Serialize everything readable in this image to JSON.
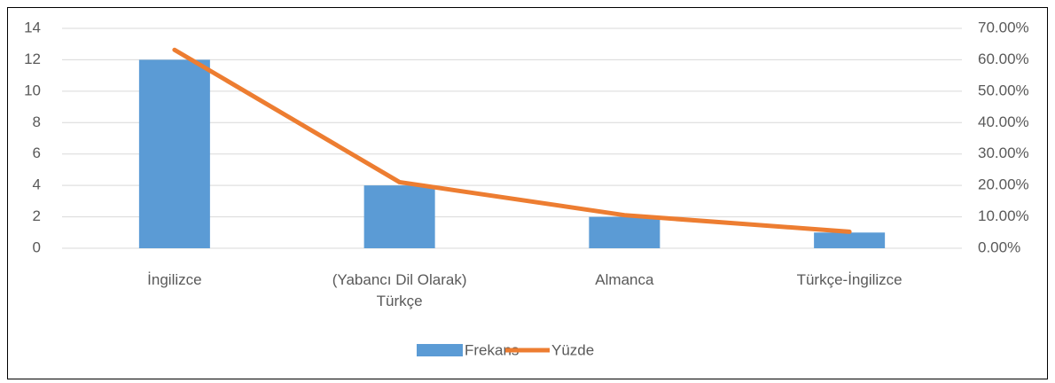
{
  "chart_data": {
    "type": "bar_line",
    "categories": [
      "İngilizce",
      "(Yabancı Dil Olarak) Türkçe",
      "Almanca",
      "Türkçe-İngilizce"
    ],
    "series": [
      {
        "name": "Frekans",
        "type": "bar",
        "color": "#5b9bd5",
        "values": [
          12,
          4,
          2,
          1
        ]
      },
      {
        "name": "Yüzde",
        "type": "line",
        "color": "#ed7d31",
        "axis": "y2",
        "values": [
          63.16,
          21.05,
          10.53,
          5.26
        ]
      }
    ],
    "ylim": [
      0,
      14
    ],
    "yticks": [
      0,
      2,
      4,
      6,
      8,
      10,
      12,
      14
    ],
    "y2lim": [
      0,
      70
    ],
    "y2ticks": [
      {
        "value": 0,
        "label": "0.00%"
      },
      {
        "value": 10,
        "label": "10.00%"
      },
      {
        "value": 20,
        "label": "20.00%"
      },
      {
        "value": 30,
        "label": "30.00%"
      },
      {
        "value": 40,
        "label": "40.00%"
      },
      {
        "value": 50,
        "label": "50.00%"
      },
      {
        "value": 60,
        "label": "60.00%"
      },
      {
        "value": 70,
        "label": "70.00%"
      }
    ],
    "grid": true,
    "legend": "bottom"
  }
}
